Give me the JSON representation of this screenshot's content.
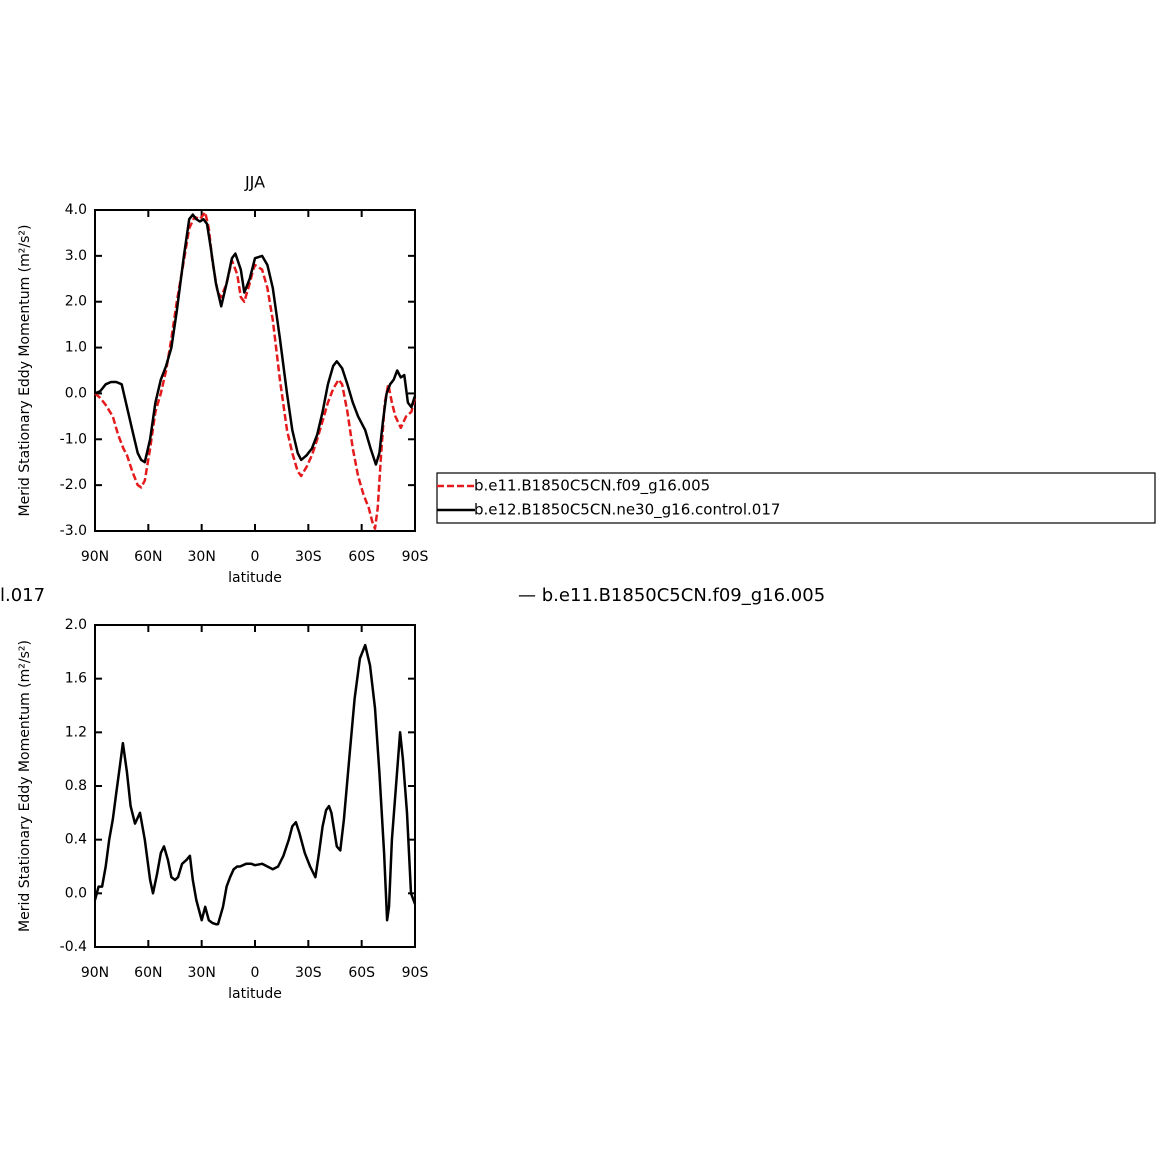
{
  "chart_data": [
    {
      "type": "line",
      "title": "JJA",
      "ylabel": "Merid Stationary Eddy Momentum (m²/s²)",
      "xlabel": "latitude",
      "xlim": [
        90,
        -90
      ],
      "xticks": [
        {
          "value": 90,
          "label": "90N"
        },
        {
          "value": 60,
          "label": "60N"
        },
        {
          "value": 30,
          "label": "30N"
        },
        0,
        {
          "value": -30,
          "label": "30S"
        },
        {
          "value": -60,
          "label": "60S"
        },
        {
          "value": -90,
          "label": "90S"
        }
      ],
      "ylim": [
        -3,
        4
      ],
      "yticks": [
        {
          "value": 4,
          "label": "4.0"
        },
        {
          "value": 3,
          "label": "3.0"
        },
        {
          "value": 2,
          "label": "2.0"
        },
        {
          "value": 1,
          "label": "1.0"
        },
        {
          "value": 0,
          "label": "0.0"
        },
        {
          "value": -1,
          "label": "-1.0"
        },
        {
          "value": -2,
          "label": "-2.0"
        },
        {
          "value": -3,
          "label": "-3.0"
        }
      ],
      "legend": true,
      "series": [
        {
          "name": "b.e11.B1850C5CN.f09_g16.005",
          "color": "#e41a1c",
          "style": "dashed",
          "x": [
            90,
            87,
            84,
            80,
            77,
            74,
            72,
            69,
            66,
            64,
            62,
            59,
            56,
            53,
            50,
            47,
            44,
            40,
            37,
            34,
            31,
            28,
            26,
            24,
            21,
            19,
            16,
            13,
            10,
            8,
            6,
            3,
            1,
            0,
            -4,
            -7,
            -10,
            -14,
            -18,
            -21,
            -24,
            -26,
            -29,
            -32,
            -35,
            -38,
            -41,
            -44,
            -47,
            -49,
            -52,
            -55,
            -58,
            -61,
            -64,
            -66,
            -67.5,
            -69,
            -71,
            -73,
            -75,
            -77,
            -79,
            -82,
            -85,
            -88,
            -90
          ],
          "values": [
            0.0,
            -0.1,
            -0.25,
            -0.5,
            -0.9,
            -1.2,
            -1.35,
            -1.7,
            -2.0,
            -2.05,
            -1.9,
            -1.2,
            -0.4,
            0.0,
            0.5,
            1.2,
            2.0,
            2.9,
            3.6,
            3.85,
            3.8,
            3.95,
            3.6,
            2.9,
            2.2,
            2.1,
            2.4,
            2.9,
            2.6,
            2.1,
            2.0,
            2.4,
            2.7,
            2.8,
            2.7,
            2.3,
            1.6,
            0.3,
            -0.8,
            -1.3,
            -1.7,
            -1.8,
            -1.6,
            -1.35,
            -1.0,
            -0.6,
            -0.2,
            0.1,
            0.3,
            0.2,
            -0.4,
            -1.2,
            -1.8,
            -2.2,
            -2.5,
            -2.8,
            -2.95,
            -2.5,
            -1.3,
            -0.2,
            0.2,
            -0.2,
            -0.5,
            -0.75,
            -0.5,
            -0.4,
            -0.1
          ]
        },
        {
          "name": "b.e12.B1850C5CN.ne30_g16.control.017",
          "color": "#000000",
          "style": "solid",
          "x": [
            90,
            87,
            84,
            81,
            78,
            75,
            72,
            69,
            66,
            64,
            62,
            59,
            56,
            53,
            50,
            47,
            44,
            40,
            37,
            35,
            33,
            31,
            29,
            27,
            25,
            22,
            19,
            16,
            13,
            11,
            8,
            6,
            3,
            0,
            -4,
            -7,
            -10,
            -14,
            -18,
            -21,
            -24,
            -26,
            -29,
            -32,
            -35,
            -38,
            -41,
            -44,
            -46,
            -49,
            -52,
            -55,
            -58,
            -62,
            -65,
            -68,
            -70,
            -72,
            -74,
            -76,
            -78,
            -80,
            -82,
            -84,
            -86,
            -88,
            -90
          ],
          "values": [
            0.0,
            0.05,
            0.2,
            0.25,
            0.25,
            0.2,
            -0.3,
            -0.8,
            -1.3,
            -1.45,
            -1.5,
            -1.0,
            -0.2,
            0.3,
            0.6,
            1.0,
            1.8,
            3.0,
            3.8,
            3.9,
            3.8,
            3.75,
            3.8,
            3.7,
            3.2,
            2.4,
            1.9,
            2.4,
            2.95,
            3.05,
            2.7,
            2.2,
            2.5,
            2.95,
            3.0,
            2.8,
            2.3,
            1.2,
            0.0,
            -0.8,
            -1.3,
            -1.45,
            -1.35,
            -1.2,
            -0.9,
            -0.4,
            0.2,
            0.6,
            0.7,
            0.55,
            0.2,
            -0.2,
            -0.5,
            -0.8,
            -1.2,
            -1.55,
            -1.3,
            -0.6,
            0.0,
            0.2,
            0.3,
            0.5,
            0.35,
            0.4,
            -0.2,
            -0.3,
            -0.05
          ]
        }
      ]
    },
    {
      "type": "line",
      "ylabel": "Merid Stationary Eddy Momentum (m²/s²)",
      "xlabel": "latitude",
      "xlim": [
        90,
        -90
      ],
      "xticks": [
        {
          "value": 90,
          "label": "90N"
        },
        {
          "value": 60,
          "label": "60N"
        },
        {
          "value": 30,
          "label": "30N"
        },
        0,
        {
          "value": -30,
          "label": "30S"
        },
        {
          "value": -60,
          "label": "60S"
        },
        {
          "value": -90,
          "label": "90S"
        }
      ],
      "ylim": [
        -0.4,
        2.0
      ],
      "yticks": [
        {
          "value": 2,
          "label": "2.0"
        },
        1.6,
        1.2,
        0.8,
        0.4,
        {
          "value": 0,
          "label": "0.0"
        },
        -0.4
      ],
      "legend": false,
      "series": [
        {
          "color": "#000000",
          "style": "solid",
          "x": [
            90,
            88,
            86,
            84,
            82,
            80,
            78,
            76,
            74.3,
            72,
            70,
            67.5,
            64.7,
            62,
            59,
            57.4,
            55,
            53,
            51.2,
            49,
            47,
            45,
            43.3,
            41,
            38.5,
            36.6,
            35,
            33,
            31,
            30,
            28,
            26,
            24,
            22,
            20.8,
            18,
            16,
            14,
            12,
            10,
            8.4,
            5,
            2,
            0,
            -4,
            -7,
            -10,
            -13,
            -16,
            -19,
            -21,
            -23,
            -25,
            -28,
            -31,
            -34,
            -36,
            -38,
            -40,
            -41.6,
            -43,
            -46,
            -48,
            -50,
            -53,
            -56,
            -59,
            -62,
            -64.7,
            -67.5,
            -70,
            -72.6,
            -74.3,
            -75.4,
            -77,
            -79.3,
            -81.6,
            -83.2,
            -85.5,
            -87.75,
            -90
          ],
          "values": [
            -0.05,
            0.05,
            0.05,
            0.2,
            0.4,
            0.55,
            0.75,
            0.95,
            1.12,
            0.9,
            0.65,
            0.52,
            0.6,
            0.4,
            0.1,
            0.0,
            0.15,
            0.3,
            0.35,
            0.25,
            0.12,
            0.1,
            0.12,
            0.22,
            0.25,
            0.28,
            0.1,
            -0.05,
            -0.15,
            -0.2,
            -0.1,
            -0.2,
            -0.22,
            -0.23,
            -0.23,
            -0.1,
            0.05,
            0.12,
            0.18,
            0.2,
            0.2,
            0.22,
            0.22,
            0.21,
            0.22,
            0.2,
            0.18,
            0.2,
            0.28,
            0.4,
            0.5,
            0.53,
            0.45,
            0.3,
            0.2,
            0.12,
            0.3,
            0.5,
            0.62,
            0.65,
            0.6,
            0.35,
            0.32,
            0.55,
            1.0,
            1.45,
            1.75,
            1.85,
            1.7,
            1.38,
            0.9,
            0.3,
            -0.2,
            -0.1,
            0.4,
            0.8,
            1.2,
            1.0,
            0.6,
            0.0,
            -0.08
          ]
        }
      ]
    }
  ],
  "annotations": [
    "l.017",
    "— b.e11.B1850C5CN.f09_g16.005"
  ]
}
